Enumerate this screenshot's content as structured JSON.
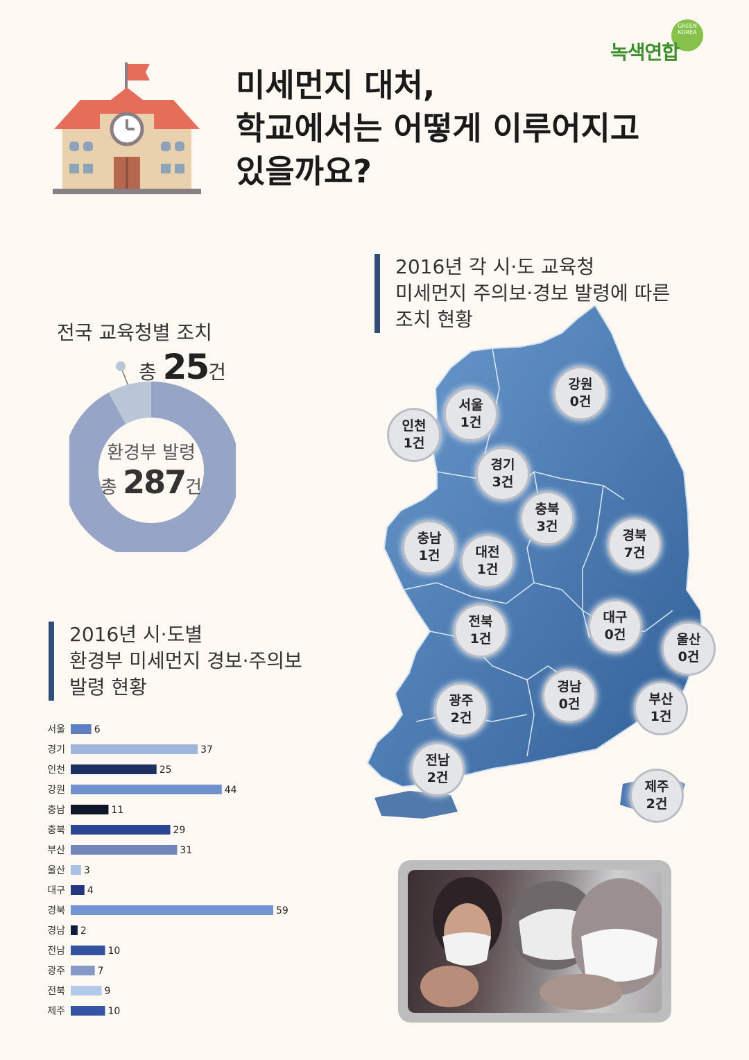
{
  "logo": {
    "small_line1": "GREEN",
    "small_line2": "KOREA",
    "name": "녹색연합",
    "color": "#3e8e2b"
  },
  "title": {
    "line1": "미세먼지 대처,",
    "line2": "학교에서는 어떻게 이루어지고",
    "line3": "있을까요?"
  },
  "donut": {
    "label": "전국 교육청별 조치",
    "total_prefix": "총",
    "total_value": "25",
    "total_unit": "건",
    "center_label": "환경부 발령",
    "center_prefix": "총",
    "center_value": "287",
    "center_unit": "건"
  },
  "map_section": {
    "line1": "2016년 각 시·도 교육청",
    "line2": "미세먼지 주의보·경보 발령에 따른",
    "line3": "조치 현황"
  },
  "map_regions": [
    {
      "name": "인천",
      "count": "1건"
    },
    {
      "name": "서울",
      "count": "1건"
    },
    {
      "name": "강원",
      "count": "0건"
    },
    {
      "name": "경기",
      "count": "3건"
    },
    {
      "name": "충북",
      "count": "3건"
    },
    {
      "name": "충남",
      "count": "1건"
    },
    {
      "name": "대전",
      "count": "1건"
    },
    {
      "name": "경북",
      "count": "7건"
    },
    {
      "name": "전북",
      "count": "1건"
    },
    {
      "name": "대구",
      "count": "0건"
    },
    {
      "name": "울산",
      "count": "0건"
    },
    {
      "name": "광주",
      "count": "2건"
    },
    {
      "name": "경남",
      "count": "0건"
    },
    {
      "name": "부산",
      "count": "1건"
    },
    {
      "name": "전남",
      "count": "2건"
    },
    {
      "name": "제주",
      "count": "2건"
    }
  ],
  "bar_section": {
    "line1": "2016년 시·도별",
    "line2": "환경부 미세먼지 경보·주의보",
    "line3": "발령 현황"
  },
  "chart_data": [
    {
      "type": "pie",
      "categories": [
        "전국 교육청별 조치",
        "환경부 발령"
      ],
      "values": [
        25,
        287
      ],
      "colors": [
        "#b9c6d6",
        "#96a5c6"
      ]
    },
    {
      "type": "bar",
      "orientation": "horizontal",
      "categories": [
        "서울",
        "경기",
        "인천",
        "강원",
        "충남",
        "충북",
        "부산",
        "울산",
        "대구",
        "경북",
        "경남",
        "전남",
        "광주",
        "전북",
        "제주"
      ],
      "values": [
        6,
        37,
        25,
        44,
        11,
        29,
        31,
        3,
        4,
        59,
        2,
        10,
        7,
        9,
        10
      ],
      "colors": [
        "#5f7fc0",
        "#9fb5dc",
        "#1e2f63",
        "#6f92cf",
        "#0d1528",
        "#2b4595",
        "#7086b8",
        "#a9bfe6",
        "#243680",
        "#7295d2",
        "#101a3a",
        "#3452a0",
        "#8599c8",
        "#b4c8ea",
        "#3455a3"
      ]
    }
  ]
}
